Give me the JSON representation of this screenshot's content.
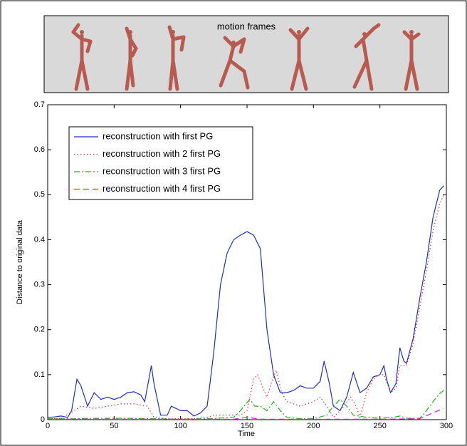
{
  "chart_data": {
    "type": "line",
    "panel_title": "motion frames",
    "x_label": "Time",
    "y_label": "Distance to original data",
    "xlim": [
      0,
      300
    ],
    "ylim": [
      0,
      0.7
    ],
    "xticks": [
      0,
      50,
      100,
      150,
      200,
      250,
      300
    ],
    "yticks": [
      0,
      0.1,
      0.2,
      0.3,
      0.4,
      0.5,
      0.6,
      0.7
    ],
    "legend": "upper-left",
    "series": [
      {
        "name": "reconstruction with first PG",
        "color": "#1f2fbf",
        "dash": "solid",
        "x": [
          0,
          5,
          10,
          15,
          18,
          22,
          25,
          30,
          35,
          40,
          45,
          50,
          55,
          60,
          65,
          70,
          73,
          78,
          80,
          85,
          90,
          93,
          100,
          105,
          110,
          115,
          120,
          125,
          130,
          135,
          140,
          145,
          150,
          155,
          160,
          165,
          170,
          175,
          180,
          185,
          190,
          195,
          200,
          205,
          208,
          212,
          215,
          220,
          225,
          230,
          235,
          240,
          245,
          250,
          253,
          255,
          258,
          262,
          265,
          268,
          270,
          275,
          280,
          285,
          290,
          295,
          298
        ],
        "values": [
          0.005,
          0.006,
          0.008,
          0.005,
          0.02,
          0.09,
          0.075,
          0.03,
          0.06,
          0.045,
          0.05,
          0.045,
          0.05,
          0.06,
          0.062,
          0.055,
          0.04,
          0.12,
          0.08,
          0.01,
          0.01,
          0.03,
          0.02,
          0.02,
          0.008,
          0.015,
          0.03,
          0.15,
          0.3,
          0.37,
          0.4,
          0.41,
          0.418,
          0.41,
          0.38,
          0.2,
          0.1,
          0.06,
          0.06,
          0.065,
          0.075,
          0.07,
          0.07,
          0.085,
          0.13,
          0.08,
          0.03,
          0.02,
          0.05,
          0.105,
          0.06,
          0.07,
          0.095,
          0.1,
          0.12,
          0.09,
          0.06,
          0.08,
          0.16,
          0.13,
          0.125,
          0.18,
          0.27,
          0.35,
          0.45,
          0.51,
          0.52
        ]
      },
      {
        "name": "reconstruction with 2 first PG",
        "color": "#e03030",
        "dash": "dotted",
        "x": [
          0,
          10,
          20,
          25,
          35,
          45,
          55,
          65,
          75,
          80,
          90,
          100,
          110,
          120,
          125,
          135,
          145,
          150,
          155,
          158,
          162,
          165,
          168,
          172,
          176,
          180,
          190,
          200,
          205,
          210,
          215,
          220,
          228,
          232,
          235,
          240,
          245,
          250,
          253,
          258,
          262,
          265,
          270,
          275,
          280,
          285,
          290,
          295,
          298
        ],
        "values": [
          0.002,
          0.003,
          0.02,
          0.03,
          0.025,
          0.03,
          0.035,
          0.035,
          0.03,
          0.005,
          0.002,
          0.002,
          0.002,
          0.005,
          0.01,
          0.01,
          0.01,
          0.02,
          0.09,
          0.1,
          0.07,
          0.05,
          0.08,
          0.11,
          0.06,
          0.04,
          0.03,
          0.04,
          0.05,
          0.03,
          0.005,
          0.02,
          0.05,
          0.03,
          0.005,
          0.06,
          0.09,
          0.1,
          0.1,
          0.06,
          0.07,
          0.12,
          0.12,
          0.17,
          0.25,
          0.33,
          0.42,
          0.48,
          0.5
        ]
      },
      {
        "name": "reconstruction with 3 first PG",
        "color": "#20b020",
        "dash": "dashdot",
        "x": [
          0,
          20,
          40,
          60,
          80,
          100,
          120,
          140,
          145,
          152,
          156,
          160,
          165,
          170,
          175,
          180,
          190,
          200,
          210,
          215,
          220,
          225,
          230,
          240,
          250,
          260,
          265,
          270,
          280,
          285,
          290,
          295,
          298
        ],
        "values": [
          0.002,
          0.002,
          0.003,
          0.003,
          0.002,
          0.001,
          0.002,
          0.005,
          0.02,
          0.045,
          0.03,
          0.03,
          0.02,
          0.04,
          0.02,
          0.005,
          0.002,
          0.002,
          0.01,
          0.03,
          0.045,
          0.03,
          0.01,
          0.005,
          0.003,
          0.005,
          0.008,
          0.003,
          0.003,
          0.02,
          0.04,
          0.058,
          0.065
        ]
      },
      {
        "name": "reconstruction with 4 first PG",
        "color": "#d020d0",
        "dash": "dashed",
        "x": [
          0,
          50,
          100,
          140,
          150,
          160,
          200,
          250,
          280,
          290,
          298
        ],
        "values": [
          0.001,
          0.001,
          0.001,
          0.001,
          0.005,
          0.001,
          0.001,
          0.001,
          0.002,
          0.015,
          0.025
        ]
      }
    ]
  }
}
